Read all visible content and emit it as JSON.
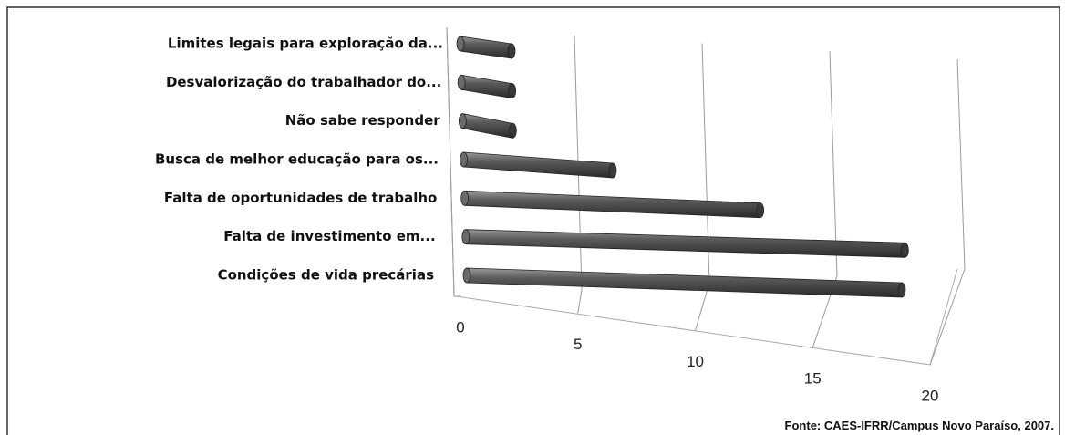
{
  "chart_data": {
    "type": "bar",
    "orientation": "horizontal",
    "categories": [
      "Limites legais para exploração da...",
      "Desvalorização do trabalhador do...",
      "Não sabe responder",
      "Busca de melhor educação para os...",
      "Falta de oportunidades de trabalho",
      "Falta de investimento em...",
      "Condições de vida precárias"
    ],
    "values": [
      2,
      2,
      2,
      6,
      12,
      18,
      18
    ],
    "color": "#4d4d4d",
    "xlim": [
      0,
      20
    ],
    "xticks": [
      0,
      5,
      10,
      15,
      20
    ],
    "grid": true,
    "source": "Fonte: CAES-IFRR/Campus Novo Paraíso, 2007."
  }
}
